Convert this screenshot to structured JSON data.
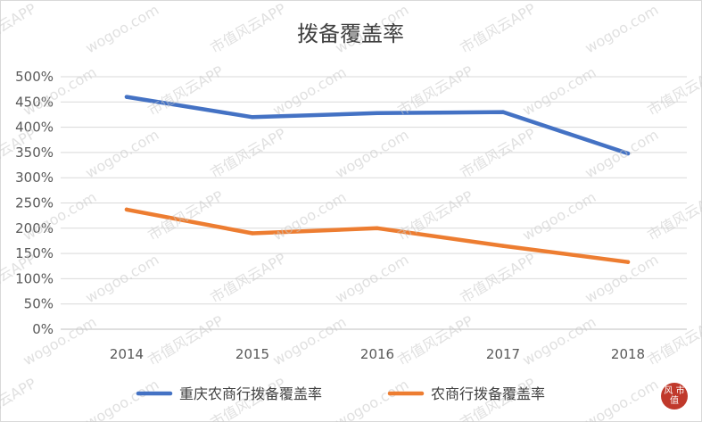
{
  "chart_data": {
    "type": "line",
    "title": "拨备覆盖率",
    "x": [
      "2014",
      "2015",
      "2016",
      "2017",
      "2018"
    ],
    "ylim": [
      0,
      500
    ],
    "y_ticks": [
      "0%",
      "50%",
      "100%",
      "150%",
      "200%",
      "250%",
      "300%",
      "350%",
      "400%",
      "450%",
      "500%"
    ],
    "y_unit": "%",
    "grid": true,
    "legend_position": "bottom",
    "series": [
      {
        "name": "重庆农商行拨备覆盖率",
        "color": "#4472c4",
        "values": [
          460,
          420,
          428,
          430,
          348
        ]
      },
      {
        "name": "农商行拨备覆盖率",
        "color": "#ed7d31",
        "values": [
          237,
          190,
          200,
          165,
          133
        ]
      }
    ]
  },
  "watermark": {
    "texts": [
      "市值风云APP",
      "wogoo.com"
    ]
  },
  "logo": {
    "text": "风 市 值",
    "color": "#c0392b"
  }
}
